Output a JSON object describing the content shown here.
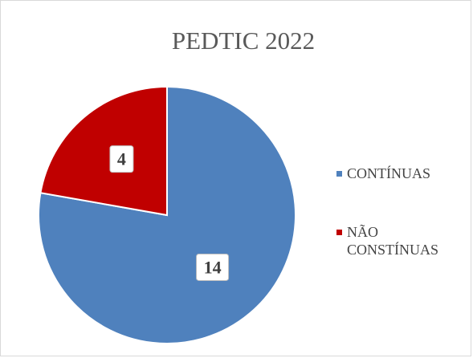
{
  "chart_data": {
    "type": "pie",
    "title": "PEDTIC 2022",
    "categories": [
      "CONTÍNUAS",
      "NÃO CONSTÍNUAS"
    ],
    "values": [
      14,
      4
    ],
    "colors": [
      "#4f81bd",
      "#c00000"
    ],
    "legend": "right"
  }
}
